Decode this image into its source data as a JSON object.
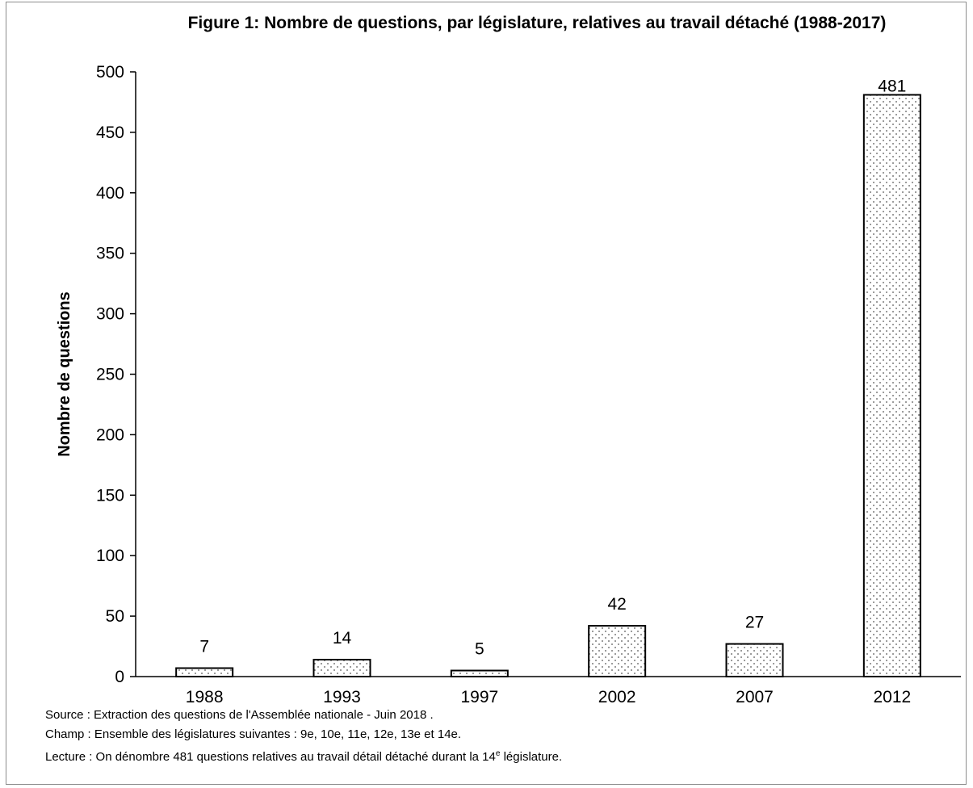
{
  "chart_data": {
    "type": "bar",
    "title": "Figure 1: Nombre de questions, par législature, relatives au travail détaché (1988-2017)",
    "xlabel": "",
    "ylabel": "Nombre de questions",
    "categories": [
      "1988",
      "1993",
      "1997",
      "2002",
      "2007",
      "2012"
    ],
    "values": [
      7,
      14,
      5,
      42,
      27,
      481
    ],
    "data_labels": [
      "7",
      "14",
      "5",
      "42",
      "27",
      "481"
    ],
    "ylim": [
      0,
      500
    ],
    "yticks": [
      "0",
      "50",
      "100",
      "150",
      "200",
      "250",
      "300",
      "350",
      "400",
      "450",
      "500"
    ],
    "grid": false,
    "legend": "none",
    "bar_fill": "dotted pattern",
    "colors": {
      "bar_border": "#000000",
      "dots": "#555555",
      "frame": "#8c8c8c"
    }
  },
  "notes": {
    "source": "Source : Extraction des questions de l'Assemblée nationale - Juin 2018 .",
    "champ": "Champ : Ensemble des législatures suivantes : 9e, 10e, 11e, 12e, 13e et 14e.",
    "lecture_pre": "Lecture : On dénombre 481 questions relatives au travail détail détaché durant la 14",
    "lecture_sup": "e",
    "lecture_post": " législature."
  }
}
